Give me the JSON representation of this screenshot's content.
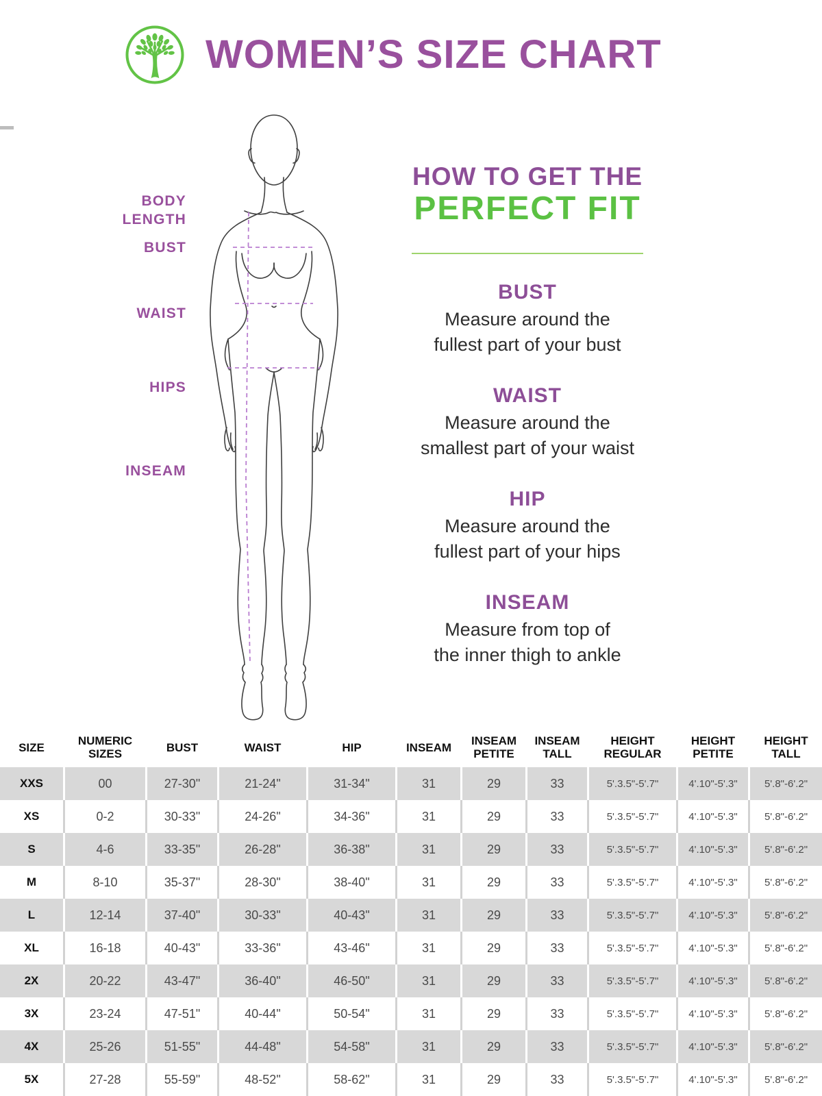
{
  "header": {
    "title": "WOMEN’S SIZE CHART",
    "logo_icon": "tree-logo"
  },
  "colors": {
    "purple": "#99509d",
    "green": "#5bc143",
    "divider_green": "#9ed46c",
    "row_gray": "#d8d8d8",
    "dashed_purple": "#b97ed0"
  },
  "figure": {
    "labels": [
      "BODY LENGTH",
      "BUST",
      "WAIST",
      "HIPS",
      "INSEAM"
    ]
  },
  "guide": {
    "title_line1": "HOW TO GET THE",
    "title_line2": "PERFECT FIT",
    "sections": [
      {
        "heading": "BUST",
        "line1": "Measure around the",
        "line2": "fullest part of your bust"
      },
      {
        "heading": "WAIST",
        "line1": "Measure around the",
        "line2": "smallest part of your waist"
      },
      {
        "heading": "HIP",
        "line1": "Measure around the",
        "line2": "fullest part of your hips"
      },
      {
        "heading": "INSEAM",
        "line1": "Measure from top of",
        "line2": "the inner thigh to ankle"
      }
    ]
  },
  "table": {
    "columns": [
      "SIZE",
      "NUMERIC SIZES",
      "BUST",
      "WAIST",
      "HIP",
      "INSEAM",
      "INSEAM PETITE",
      "INSEAM TALL",
      "HEIGHT REGULAR",
      "HEIGHT PETITE",
      "HEIGHT TALL"
    ],
    "rows": [
      [
        "XXS",
        "00",
        "27-30\"",
        "21-24\"",
        "31-34\"",
        "31",
        "29",
        "33",
        "5'.3.5\"-5'.7\"",
        "4'.10\"-5'.3\"",
        "5'.8\"-6'.2\""
      ],
      [
        "XS",
        "0-2",
        "30-33\"",
        "24-26\"",
        "34-36\"",
        "31",
        "29",
        "33",
        "5'.3.5\"-5'.7\"",
        "4'.10\"-5'.3\"",
        "5'.8\"-6'.2\""
      ],
      [
        "S",
        "4-6",
        "33-35\"",
        "26-28\"",
        "36-38\"",
        "31",
        "29",
        "33",
        "5'.3.5\"-5'.7\"",
        "4'.10\"-5'.3\"",
        "5'.8\"-6'.2\""
      ],
      [
        "M",
        "8-10",
        "35-37\"",
        "28-30\"",
        "38-40\"",
        "31",
        "29",
        "33",
        "5'.3.5\"-5'.7\"",
        "4'.10\"-5'.3\"",
        "5'.8\"-6'.2\""
      ],
      [
        "L",
        "12-14",
        "37-40\"",
        "30-33\"",
        "40-43\"",
        "31",
        "29",
        "33",
        "5'.3.5\"-5'.7\"",
        "4'.10\"-5'.3\"",
        "5'.8\"-6'.2\""
      ],
      [
        "XL",
        "16-18",
        "40-43\"",
        "33-36\"",
        "43-46\"",
        "31",
        "29",
        "33",
        "5'.3.5\"-5'.7\"",
        "4'.10\"-5'.3\"",
        "5'.8\"-6'.2\""
      ],
      [
        "2X",
        "20-22",
        "43-47\"",
        "36-40\"",
        "46-50\"",
        "31",
        "29",
        "33",
        "5'.3.5\"-5'.7\"",
        "4'.10\"-5'.3\"",
        "5'.8\"-6'.2\""
      ],
      [
        "3X",
        "23-24",
        "47-51\"",
        "40-44\"",
        "50-54\"",
        "31",
        "29",
        "33",
        "5'.3.5\"-5'.7\"",
        "4'.10\"-5'.3\"",
        "5'.8\"-6'.2\""
      ],
      [
        "4X",
        "25-26",
        "51-55\"",
        "44-48\"",
        "54-58\"",
        "31",
        "29",
        "33",
        "5'.3.5\"-5'.7\"",
        "4'.10\"-5'.3\"",
        "5'.8\"-6'.2\""
      ],
      [
        "5X",
        "27-28",
        "55-59\"",
        "48-52\"",
        "58-62\"",
        "31",
        "29",
        "33",
        "5'.3.5\"-5'.7\"",
        "4'.10\"-5'.3\"",
        "5'.8\"-6'.2\""
      ]
    ]
  }
}
